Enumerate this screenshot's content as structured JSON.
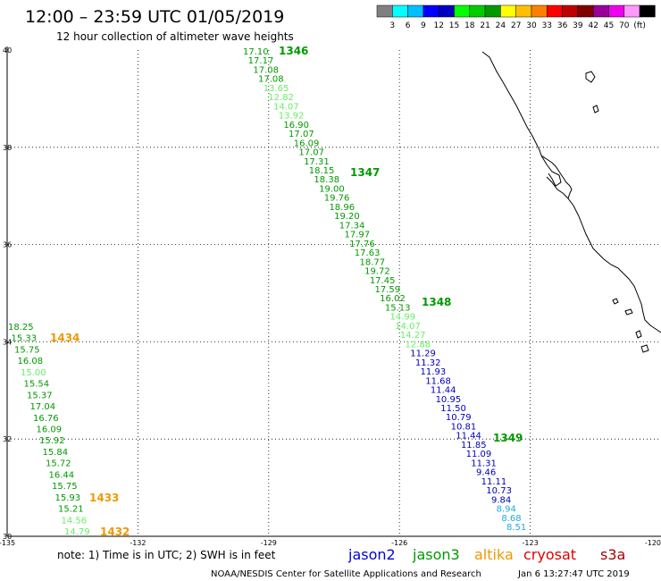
{
  "header": {
    "title": "12:00 – 23:59 UTC 01/05/2019",
    "subtitle": "12 hour collection of altimeter wave heights"
  },
  "color_scale": {
    "colors": [
      "#808080",
      "#00ffff",
      "#00bfff",
      "#0000ff",
      "#0000c0",
      "#00ff00",
      "#00cc00",
      "#009900",
      "#ffff00",
      "#ffbf00",
      "#ff8000",
      "#ff0000",
      "#c00000",
      "#800000",
      "#990099",
      "#ee00ee",
      "#ff99ff",
      "#000000"
    ],
    "labels": [
      "3",
      "6",
      "9",
      "12",
      "15",
      "18",
      "21",
      "24",
      "27",
      "30",
      "33",
      "36",
      "39",
      "42",
      "45",
      "70",
      "(ft)"
    ]
  },
  "map": {
    "lat_range": [
      30,
      40
    ],
    "lon_range": [
      -135,
      -120
    ],
    "lat_labels": [
      "40",
      "38",
      "36",
      "34",
      "32",
      "30"
    ],
    "lon_labels": [
      "-135",
      "-132",
      "-129",
      "-126",
      "-123",
      "-120"
    ],
    "coastline_color": "#000000",
    "grid_color": "#000000"
  },
  "observations": {
    "track_a": [
      {
        "v": "17.10",
        "c": "#009900"
      },
      {
        "v": "17.17",
        "c": "#009900"
      },
      {
        "v": "17.08",
        "c": "#009900"
      },
      {
        "v": "17.08",
        "c": "#009900"
      },
      {
        "v": "13.65",
        "c": "#66ee66"
      },
      {
        "v": "12.82",
        "c": "#66ee66"
      },
      {
        "v": "14.07",
        "c": "#66ee66"
      },
      {
        "v": "13.92",
        "c": "#66ee66"
      },
      {
        "v": "16.90",
        "c": "#009900"
      },
      {
        "v": "17.07",
        "c": "#009900"
      },
      {
        "v": "16.09",
        "c": "#009900"
      },
      {
        "v": "17.07",
        "c": "#009900"
      },
      {
        "v": "17.31",
        "c": "#009900"
      },
      {
        "v": "18.15",
        "c": "#009900"
      },
      {
        "v": "18.38",
        "c": "#009900"
      },
      {
        "v": "19.00",
        "c": "#009900"
      },
      {
        "v": "19.76",
        "c": "#009900"
      },
      {
        "v": "18.96",
        "c": "#009900"
      },
      {
        "v": "19.20",
        "c": "#009900"
      },
      {
        "v": "17.34",
        "c": "#009900"
      },
      {
        "v": "17.97",
        "c": "#009900"
      },
      {
        "v": "17.76",
        "c": "#009900"
      },
      {
        "v": "17.63",
        "c": "#009900"
      },
      {
        "v": "18.77",
        "c": "#009900"
      },
      {
        "v": "19.72",
        "c": "#009900"
      },
      {
        "v": "17.45",
        "c": "#009900"
      },
      {
        "v": "17.59",
        "c": "#009900"
      },
      {
        "v": "16.02",
        "c": "#009900"
      },
      {
        "v": "15.13",
        "c": "#009900"
      },
      {
        "v": "14.99",
        "c": "#66ee66"
      },
      {
        "v": "14.07",
        "c": "#66ee66"
      },
      {
        "v": "14.27",
        "c": "#66ee66"
      },
      {
        "v": "12.88",
        "c": "#66ee66"
      },
      {
        "v": "11.29",
        "c": "#0000bb"
      },
      {
        "v": "11.32",
        "c": "#0000bb"
      },
      {
        "v": "11.93",
        "c": "#0000bb"
      },
      {
        "v": "11.68",
        "c": "#0000bb"
      },
      {
        "v": "11.44",
        "c": "#0000bb"
      },
      {
        "v": "10.95",
        "c": "#0000bb"
      },
      {
        "v": "11.50",
        "c": "#0000bb"
      },
      {
        "v": "10.79",
        "c": "#0000bb"
      },
      {
        "v": "10.81",
        "c": "#0000bb"
      },
      {
        "v": "11.44",
        "c": "#0000bb"
      },
      {
        "v": "11.85",
        "c": "#0000bb"
      },
      {
        "v": "11.09",
        "c": "#0000bb"
      },
      {
        "v": "11.31",
        "c": "#0000bb"
      },
      {
        "v": "9.46",
        "c": "#0000bb"
      },
      {
        "v": "11.11",
        "c": "#0000bb"
      },
      {
        "v": "10.73",
        "c": "#0000bb"
      },
      {
        "v": "9.84",
        "c": "#0000bb"
      },
      {
        "v": "8.94",
        "c": "#22aadd"
      },
      {
        "v": "8.68",
        "c": "#22aadd"
      },
      {
        "v": "8.51",
        "c": "#22aadd"
      }
    ],
    "track_b": [
      {
        "v": "18.25",
        "c": "#009900"
      },
      {
        "v": "15.33",
        "c": "#009900"
      },
      {
        "v": "15.75",
        "c": "#009900"
      },
      {
        "v": "16.08",
        "c": "#009900"
      },
      {
        "v": "15.00",
        "c": "#66ee66"
      },
      {
        "v": "15.54",
        "c": "#009900"
      },
      {
        "v": "15.37",
        "c": "#009900"
      },
      {
        "v": "17.04",
        "c": "#009900"
      },
      {
        "v": "16.76",
        "c": "#009900"
      },
      {
        "v": "16.09",
        "c": "#009900"
      },
      {
        "v": "15.92",
        "c": "#009900"
      },
      {
        "v": "15.84",
        "c": "#009900"
      },
      {
        "v": "15.72",
        "c": "#009900"
      },
      {
        "v": "16.44",
        "c": "#009900"
      },
      {
        "v": "15.75",
        "c": "#009900"
      },
      {
        "v": "15.93",
        "c": "#009900"
      },
      {
        "v": "15.21",
        "c": "#009900"
      },
      {
        "v": "14.56",
        "c": "#66ee66"
      },
      {
        "v": "14.79",
        "c": "#66ee66"
      }
    ],
    "pass_times_a": [
      {
        "t": "1346",
        "c": "#009900"
      },
      {
        "t": "1347",
        "c": "#009900"
      },
      {
        "t": "1348",
        "c": "#009900"
      },
      {
        "t": "1349",
        "c": "#009900"
      }
    ],
    "pass_times_b": [
      {
        "t": "1434",
        "c": "#ee9900"
      },
      {
        "t": "1433",
        "c": "#ee9900"
      },
      {
        "t": "1432",
        "c": "#ee9900"
      }
    ]
  },
  "footer": {
    "note": "note: 1) Time is in UTC; 2) SWH is in feet",
    "satellites": [
      {
        "name": "jason2",
        "color": "#0000dd"
      },
      {
        "name": "jason3",
        "color": "#009900"
      },
      {
        "name": "altika",
        "color": "#ee9900"
      },
      {
        "name": "cryosat",
        "color": "#dd0000"
      },
      {
        "name": "s3a",
        "color": "#aa0000"
      }
    ],
    "credit": "NOAA/NESDIS Center for Satellite Applications and Research",
    "generated": "Jan  6 13:27:47 UTC 2019"
  }
}
